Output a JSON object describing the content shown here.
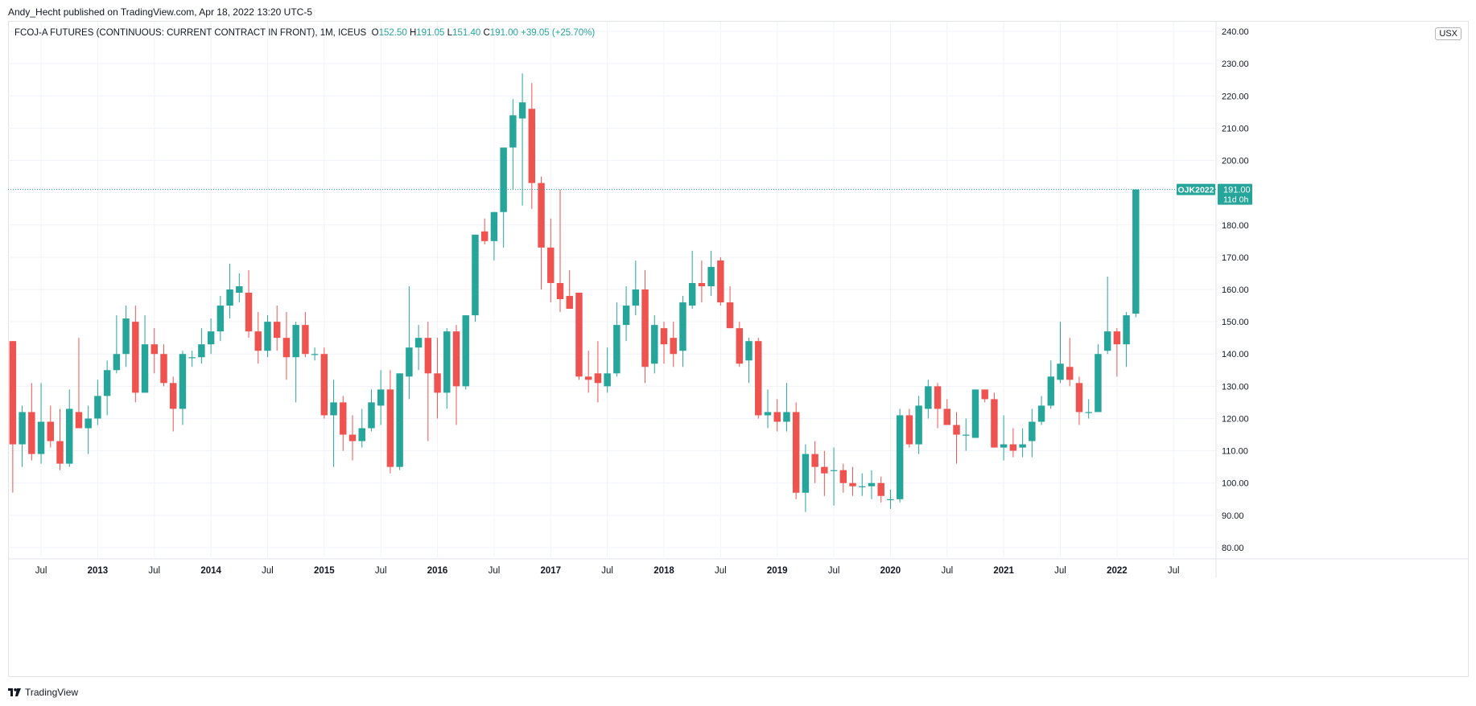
{
  "publisher": "Andy_Hecht published on TradingView.com, Apr 18, 2022 13:20 UTC-5",
  "symbol": "FCOJ-A FUTURES (CONTINUOUS: CURRENT CONTRACT IN FRONT), 1M, ICEUS",
  "ohlc": {
    "o_label": "O",
    "o": "152.50",
    "h_label": "H",
    "h": "191.05",
    "l_label": "L",
    "l": "151.40",
    "c_label": "C",
    "c": "191.00",
    "change": "+39.05 (+25.70%)"
  },
  "currency": "USX",
  "brand": "TradingView",
  "price_tag": {
    "contract": "OJK2022",
    "price": "191.00",
    "countdown": "11d 0h"
  },
  "colors": {
    "up": "#26a69a",
    "down": "#ef5350",
    "grid": "#f0f3fa",
    "text": "#131722"
  },
  "chart_data": {
    "type": "candlestick",
    "title": "FCOJ-A FUTURES (CONTINUOUS: CURRENT CONTRACT IN FRONT), 1M, ICEUS",
    "interval": "1M",
    "ylim": [
      77,
      243
    ],
    "y_ticks": [
      80,
      90,
      100,
      110,
      120,
      130,
      140,
      150,
      160,
      170,
      180,
      190,
      200,
      210,
      220,
      230,
      240
    ],
    "y_tick_labels": [
      "80.00",
      "90.00",
      "100.00",
      "110.00",
      "120.00",
      "130.00",
      "140.00",
      "150.00",
      "160.00",
      "170.00",
      "180.00",
      "190.00",
      "200.00",
      "210.00",
      "220.00",
      "230.00",
      "240.00"
    ],
    "x_range": [
      "2012-04",
      "2022-11"
    ],
    "x_ticks": [
      {
        "date": "2012-07",
        "label": "Jul"
      },
      {
        "date": "2013-01",
        "label": "2013"
      },
      {
        "date": "2013-07",
        "label": "Jul"
      },
      {
        "date": "2014-01",
        "label": "2014"
      },
      {
        "date": "2014-07",
        "label": "Jul"
      },
      {
        "date": "2015-01",
        "label": "2015"
      },
      {
        "date": "2015-07",
        "label": "Jul"
      },
      {
        "date": "2016-01",
        "label": "2016"
      },
      {
        "date": "2016-07",
        "label": "Jul"
      },
      {
        "date": "2017-01",
        "label": "2017"
      },
      {
        "date": "2017-07",
        "label": "Jul"
      },
      {
        "date": "2018-01",
        "label": "2018"
      },
      {
        "date": "2018-07",
        "label": "Jul"
      },
      {
        "date": "2019-01",
        "label": "2019"
      },
      {
        "date": "2019-07",
        "label": "Jul"
      },
      {
        "date": "2020-01",
        "label": "2020"
      },
      {
        "date": "2020-07",
        "label": "Jul"
      },
      {
        "date": "2021-01",
        "label": "2021"
      },
      {
        "date": "2021-07",
        "label": "Jul"
      },
      {
        "date": "2022-01",
        "label": "2022"
      },
      {
        "date": "2022-07",
        "label": "Jul"
      }
    ],
    "last_price": 191.0,
    "candles": [
      {
        "d": "2012-04",
        "o": 144,
        "h": 144,
        "l": 97,
        "c": 112
      },
      {
        "d": "2012-05",
        "o": 112,
        "h": 124,
        "l": 105,
        "c": 122
      },
      {
        "d": "2012-06",
        "o": 122,
        "h": 131,
        "l": 107,
        "c": 109
      },
      {
        "d": "2012-07",
        "o": 109,
        "h": 131,
        "l": 106,
        "c": 119
      },
      {
        "d": "2012-08",
        "o": 119,
        "h": 124,
        "l": 111,
        "c": 113
      },
      {
        "d": "2012-09",
        "o": 113,
        "h": 123,
        "l": 104,
        "c": 106
      },
      {
        "d": "2012-10",
        "o": 106,
        "h": 129,
        "l": 105,
        "c": 123
      },
      {
        "d": "2012-11",
        "o": 122,
        "h": 145,
        "l": 117,
        "c": 117
      },
      {
        "d": "2012-12",
        "o": 117,
        "h": 124,
        "l": 109,
        "c": 120
      },
      {
        "d": "2013-01",
        "o": 120,
        "h": 132,
        "l": 118,
        "c": 127
      },
      {
        "d": "2013-02",
        "o": 127,
        "h": 138,
        "l": 121,
        "c": 135
      },
      {
        "d": "2013-03",
        "o": 135,
        "h": 152,
        "l": 134,
        "c": 140
      },
      {
        "d": "2013-04",
        "o": 140,
        "h": 155,
        "l": 136,
        "c": 151
      },
      {
        "d": "2013-05",
        "o": 150,
        "h": 155,
        "l": 125,
        "c": 128
      },
      {
        "d": "2013-06",
        "o": 128,
        "h": 152,
        "l": 128,
        "c": 143
      },
      {
        "d": "2013-07",
        "o": 143,
        "h": 148,
        "l": 134,
        "c": 140
      },
      {
        "d": "2013-08",
        "o": 140,
        "h": 143,
        "l": 130,
        "c": 131
      },
      {
        "d": "2013-09",
        "o": 131,
        "h": 133,
        "l": 116,
        "c": 123
      },
      {
        "d": "2013-10",
        "o": 123,
        "h": 141,
        "l": 118,
        "c": 140
      },
      {
        "d": "2013-11",
        "o": 139,
        "h": 141,
        "l": 136,
        "c": 139
      },
      {
        "d": "2013-12",
        "o": 139,
        "h": 148,
        "l": 137,
        "c": 143
      },
      {
        "d": "2014-01",
        "o": 143,
        "h": 151,
        "l": 140,
        "c": 147
      },
      {
        "d": "2014-02",
        "o": 147,
        "h": 158,
        "l": 144,
        "c": 155
      },
      {
        "d": "2014-03",
        "o": 155,
        "h": 168,
        "l": 151,
        "c": 160
      },
      {
        "d": "2014-04",
        "o": 159,
        "h": 165,
        "l": 156,
        "c": 161
      },
      {
        "d": "2014-05",
        "o": 159,
        "h": 166,
        "l": 145,
        "c": 147
      },
      {
        "d": "2014-06",
        "o": 147,
        "h": 153,
        "l": 137,
        "c": 141
      },
      {
        "d": "2014-07",
        "o": 141,
        "h": 152,
        "l": 139,
        "c": 150
      },
      {
        "d": "2014-08",
        "o": 150,
        "h": 155,
        "l": 141,
        "c": 145
      },
      {
        "d": "2014-09",
        "o": 145,
        "h": 153,
        "l": 132,
        "c": 139
      },
      {
        "d": "2014-10",
        "o": 139,
        "h": 150,
        "l": 125,
        "c": 149
      },
      {
        "d": "2014-11",
        "o": 149,
        "h": 153,
        "l": 139,
        "c": 140
      },
      {
        "d": "2014-12",
        "o": 140,
        "h": 142,
        "l": 138,
        "c": 140
      },
      {
        "d": "2015-01",
        "o": 140,
        "h": 142,
        "l": 120,
        "c": 121
      },
      {
        "d": "2015-02",
        "o": 121,
        "h": 132,
        "l": 105,
        "c": 125
      },
      {
        "d": "2015-03",
        "o": 125,
        "h": 127,
        "l": 110,
        "c": 115
      },
      {
        "d": "2015-04",
        "o": 115,
        "h": 121,
        "l": 107,
        "c": 113
      },
      {
        "d": "2015-05",
        "o": 113,
        "h": 123,
        "l": 111,
        "c": 117
      },
      {
        "d": "2015-06",
        "o": 117,
        "h": 129,
        "l": 116,
        "c": 125
      },
      {
        "d": "2015-07",
        "o": 124,
        "h": 135,
        "l": 118,
        "c": 129
      },
      {
        "d": "2015-08",
        "o": 129,
        "h": 135,
        "l": 103,
        "c": 105
      },
      {
        "d": "2015-09",
        "o": 105,
        "h": 134,
        "l": 104,
        "c": 134
      },
      {
        "d": "2015-10",
        "o": 133,
        "h": 161,
        "l": 126,
        "c": 142
      },
      {
        "d": "2015-11",
        "o": 142,
        "h": 149,
        "l": 135,
        "c": 145
      },
      {
        "d": "2015-12",
        "o": 145,
        "h": 150,
        "l": 113,
        "c": 134
      },
      {
        "d": "2016-01",
        "o": 134,
        "h": 145,
        "l": 120,
        "c": 128
      },
      {
        "d": "2016-02",
        "o": 128,
        "h": 148,
        "l": 123,
        "c": 147
      },
      {
        "d": "2016-03",
        "o": 147,
        "h": 149,
        "l": 118,
        "c": 130
      },
      {
        "d": "2016-04",
        "o": 130,
        "h": 152,
        "l": 129,
        "c": 152
      },
      {
        "d": "2016-05",
        "o": 152,
        "h": 177,
        "l": 150,
        "c": 177
      },
      {
        "d": "2016-06",
        "o": 178,
        "h": 182,
        "l": 174,
        "c": 175
      },
      {
        "d": "2016-07",
        "o": 175,
        "h": 184,
        "l": 169,
        "c": 184
      },
      {
        "d": "2016-08",
        "o": 184,
        "h": 204,
        "l": 173,
        "c": 204
      },
      {
        "d": "2016-09",
        "o": 204,
        "h": 219,
        "l": 191,
        "c": 214
      },
      {
        "d": "2016-10",
        "o": 213,
        "h": 227,
        "l": 186,
        "c": 218
      },
      {
        "d": "2016-11",
        "o": 216,
        "h": 224,
        "l": 185,
        "c": 193
      },
      {
        "d": "2016-12",
        "o": 193,
        "h": 195,
        "l": 160,
        "c": 173
      },
      {
        "d": "2017-01",
        "o": 173,
        "h": 182,
        "l": 156,
        "c": 162
      },
      {
        "d": "2017-02",
        "o": 162,
        "h": 191,
        "l": 153,
        "c": 157
      },
      {
        "d": "2017-03",
        "o": 158,
        "h": 166,
        "l": 154,
        "c": 154
      },
      {
        "d": "2017-04",
        "o": 159,
        "h": 159,
        "l": 132,
        "c": 133
      },
      {
        "d": "2017-05",
        "o": 133,
        "h": 141,
        "l": 128,
        "c": 132
      },
      {
        "d": "2017-06",
        "o": 134,
        "h": 144,
        "l": 125,
        "c": 131
      },
      {
        "d": "2017-07",
        "o": 130,
        "h": 142,
        "l": 128,
        "c": 134
      },
      {
        "d": "2017-08",
        "o": 134,
        "h": 156,
        "l": 133,
        "c": 149
      },
      {
        "d": "2017-09",
        "o": 149,
        "h": 161,
        "l": 144,
        "c": 155
      },
      {
        "d": "2017-10",
        "o": 155,
        "h": 169,
        "l": 152,
        "c": 160
      },
      {
        "d": "2017-11",
        "o": 160,
        "h": 166,
        "l": 131,
        "c": 136
      },
      {
        "d": "2017-12",
        "o": 137,
        "h": 152,
        "l": 134,
        "c": 149
      },
      {
        "d": "2018-01",
        "o": 148,
        "h": 150,
        "l": 137,
        "c": 143
      },
      {
        "d": "2018-02",
        "o": 145,
        "h": 150,
        "l": 136,
        "c": 140
      },
      {
        "d": "2018-03",
        "o": 141,
        "h": 158,
        "l": 136,
        "c": 156
      },
      {
        "d": "2018-04",
        "o": 155,
        "h": 172,
        "l": 154,
        "c": 162
      },
      {
        "d": "2018-05",
        "o": 162,
        "h": 169,
        "l": 156,
        "c": 161
      },
      {
        "d": "2018-06",
        "o": 161,
        "h": 172,
        "l": 158,
        "c": 167
      },
      {
        "d": "2018-07",
        "o": 169,
        "h": 170,
        "l": 155,
        "c": 156
      },
      {
        "d": "2018-08",
        "o": 156,
        "h": 161,
        "l": 148,
        "c": 148
      },
      {
        "d": "2018-09",
        "o": 148,
        "h": 150,
        "l": 136,
        "c": 137
      },
      {
        "d": "2018-10",
        "o": 138,
        "h": 145,
        "l": 131,
        "c": 144
      },
      {
        "d": "2018-11",
        "o": 144,
        "h": 145,
        "l": 120,
        "c": 121
      },
      {
        "d": "2018-12",
        "o": 121,
        "h": 129,
        "l": 117,
        "c": 122
      },
      {
        "d": "2019-01",
        "o": 122,
        "h": 126,
        "l": 116,
        "c": 119
      },
      {
        "d": "2019-02",
        "o": 119,
        "h": 131,
        "l": 116,
        "c": 122
      },
      {
        "d": "2019-03",
        "o": 122,
        "h": 125,
        "l": 95,
        "c": 97
      },
      {
        "d": "2019-04",
        "o": 97,
        "h": 112,
        "l": 91,
        "c": 109
      },
      {
        "d": "2019-05",
        "o": 109,
        "h": 113,
        "l": 100,
        "c": 105
      },
      {
        "d": "2019-06",
        "o": 105,
        "h": 110,
        "l": 96,
        "c": 103
      },
      {
        "d": "2019-07",
        "o": 104,
        "h": 111,
        "l": 93,
        "c": 104
      },
      {
        "d": "2019-08",
        "o": 104,
        "h": 106,
        "l": 97,
        "c": 100
      },
      {
        "d": "2019-09",
        "o": 100,
        "h": 105,
        "l": 96,
        "c": 99
      },
      {
        "d": "2019-10",
        "o": 99,
        "h": 103,
        "l": 96,
        "c": 99
      },
      {
        "d": "2019-11",
        "o": 99,
        "h": 104,
        "l": 95,
        "c": 100
      },
      {
        "d": "2019-12",
        "o": 100,
        "h": 102,
        "l": 94,
        "c": 96
      },
      {
        "d": "2020-01",
        "o": 95,
        "h": 98,
        "l": 92,
        "c": 95
      },
      {
        "d": "2020-02",
        "o": 95,
        "h": 123,
        "l": 94,
        "c": 121
      },
      {
        "d": "2020-03",
        "o": 121,
        "h": 123,
        "l": 111,
        "c": 112
      },
      {
        "d": "2020-04",
        "o": 112,
        "h": 127,
        "l": 109,
        "c": 124
      },
      {
        "d": "2020-05",
        "o": 123,
        "h": 132,
        "l": 120,
        "c": 130
      },
      {
        "d": "2020-06",
        "o": 130,
        "h": 131,
        "l": 117,
        "c": 123
      },
      {
        "d": "2020-07",
        "o": 123,
        "h": 126,
        "l": 118,
        "c": 118
      },
      {
        "d": "2020-08",
        "o": 118,
        "h": 122,
        "l": 106,
        "c": 115
      },
      {
        "d": "2020-09",
        "o": 115,
        "h": 120,
        "l": 110,
        "c": 115
      },
      {
        "d": "2020-10",
        "o": 114,
        "h": 129,
        "l": 114,
        "c": 129
      },
      {
        "d": "2020-11",
        "o": 129,
        "h": 129,
        "l": 125,
        "c": 126
      },
      {
        "d": "2020-12",
        "o": 126,
        "h": 128,
        "l": 111,
        "c": 111
      },
      {
        "d": "2021-01",
        "o": 111,
        "h": 121,
        "l": 107,
        "c": 112
      },
      {
        "d": "2021-02",
        "o": 112,
        "h": 117,
        "l": 108,
        "c": 110
      },
      {
        "d": "2021-03",
        "o": 111,
        "h": 117,
        "l": 108,
        "c": 112
      },
      {
        "d": "2021-04",
        "o": 113,
        "h": 123,
        "l": 108,
        "c": 119
      },
      {
        "d": "2021-05",
        "o": 119,
        "h": 127,
        "l": 118,
        "c": 124
      },
      {
        "d": "2021-06",
        "o": 124,
        "h": 138,
        "l": 123,
        "c": 133
      },
      {
        "d": "2021-07",
        "o": 132,
        "h": 150,
        "l": 131,
        "c": 137
      },
      {
        "d": "2021-08",
        "o": 136,
        "h": 145,
        "l": 130,
        "c": 132
      },
      {
        "d": "2021-09",
        "o": 131,
        "h": 133,
        "l": 118,
        "c": 122
      },
      {
        "d": "2021-10",
        "o": 122,
        "h": 126,
        "l": 120,
        "c": 122
      },
      {
        "d": "2021-11",
        "o": 122,
        "h": 143,
        "l": 122,
        "c": 140
      },
      {
        "d": "2021-12",
        "o": 141,
        "h": 164,
        "l": 140,
        "c": 147
      },
      {
        "d": "2022-01",
        "o": 147,
        "h": 148,
        "l": 133,
        "c": 143
      },
      {
        "d": "2022-02",
        "o": 143,
        "h": 153,
        "l": 136,
        "c": 152
      },
      {
        "d": "2022-03",
        "o": 152.5,
        "h": 191.05,
        "l": 151.4,
        "c": 191.0
      }
    ]
  }
}
